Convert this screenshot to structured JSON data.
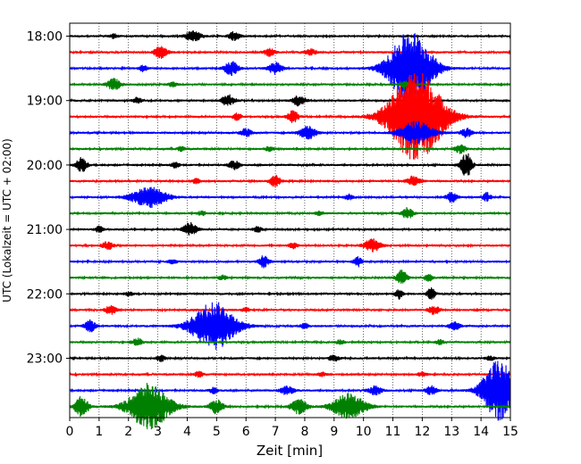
{
  "chart_data": {
    "type": "line",
    "title": "",
    "xlabel": "Zeit  [min]",
    "ylabel": "UTC (Lokalzeit = UTC + 02:00)",
    "xlim": [
      0,
      15
    ],
    "x_ticks": [
      "0",
      "1",
      "2",
      "3",
      "4",
      "5",
      "6",
      "7",
      "8",
      "9",
      "10",
      "11",
      "12",
      "13",
      "14",
      "15"
    ],
    "y_tick_labels": [
      "18:00",
      "19:00",
      "20:00",
      "21:00",
      "22:00",
      "23:00"
    ],
    "grid": "vertical dotted",
    "trace_start_times": [
      "18:00",
      "18:15",
      "18:30",
      "18:45",
      "19:00",
      "19:15",
      "19:30",
      "19:45",
      "20:00",
      "20:15",
      "20:30",
      "20:45",
      "21:00",
      "21:15",
      "21:30",
      "21:45",
      "22:00",
      "22:15",
      "22:30",
      "22:45",
      "23:00",
      "23:15",
      "23:30",
      "23:45"
    ],
    "trace_colors": [
      "#000000",
      "#ff0000",
      "#0000ff",
      "#008000"
    ],
    "trace_bursts": [
      [
        [
          4.2,
          0.6,
          0.35
        ],
        [
          5.6,
          0.4,
          0.3
        ],
        [
          1.5,
          0.3,
          0.15
        ]
      ],
      [
        [
          3.1,
          0.5,
          0.4
        ],
        [
          6.8,
          0.4,
          0.25
        ],
        [
          8.2,
          0.4,
          0.2
        ]
      ],
      [
        [
          11.6,
          1.6,
          2.6
        ],
        [
          5.5,
          0.5,
          0.5
        ],
        [
          7.0,
          0.5,
          0.4
        ],
        [
          2.5,
          0.3,
          0.2
        ]
      ],
      [
        [
          1.5,
          0.5,
          0.4
        ],
        [
          11.4,
          0.3,
          0.25
        ],
        [
          3.5,
          0.3,
          0.15
        ]
      ],
      [
        [
          5.4,
          0.5,
          0.4
        ],
        [
          7.8,
          0.5,
          0.35
        ],
        [
          2.3,
          0.3,
          0.2
        ]
      ],
      [
        [
          11.8,
          2.0,
          3.2
        ],
        [
          7.6,
          0.4,
          0.4
        ],
        [
          5.7,
          0.3,
          0.25
        ]
      ],
      [
        [
          8.1,
          0.6,
          0.45
        ],
        [
          6.0,
          0.4,
          0.3
        ],
        [
          13.5,
          0.4,
          0.3
        ],
        [
          11.8,
          1.2,
          0.8
        ]
      ],
      [
        [
          13.3,
          0.4,
          0.3
        ],
        [
          6.8,
          0.3,
          0.2
        ],
        [
          3.8,
          0.3,
          0.15
        ]
      ],
      [
        [
          0.4,
          0.4,
          0.5
        ],
        [
          13.5,
          0.4,
          0.9
        ],
        [
          5.6,
          0.4,
          0.3
        ],
        [
          3.6,
          0.3,
          0.2
        ]
      ],
      [
        [
          7.0,
          0.4,
          0.4
        ],
        [
          11.7,
          0.5,
          0.35
        ],
        [
          4.3,
          0.3,
          0.15
        ]
      ],
      [
        [
          2.7,
          1.3,
          0.7
        ],
        [
          13.0,
          0.4,
          0.35
        ],
        [
          14.2,
          0.3,
          0.3
        ],
        [
          9.5,
          0.3,
          0.2
        ]
      ],
      [
        [
          11.5,
          0.4,
          0.4
        ],
        [
          4.5,
          0.3,
          0.15
        ],
        [
          8.5,
          0.3,
          0.15
        ]
      ],
      [
        [
          4.1,
          0.5,
          0.45
        ],
        [
          6.4,
          0.3,
          0.2
        ],
        [
          1.0,
          0.3,
          0.2
        ]
      ],
      [
        [
          10.3,
          0.6,
          0.45
        ],
        [
          1.3,
          0.4,
          0.3
        ],
        [
          7.6,
          0.3,
          0.2
        ]
      ],
      [
        [
          6.6,
          0.4,
          0.4
        ],
        [
          9.8,
          0.3,
          0.35
        ],
        [
          3.5,
          0.3,
          0.15
        ]
      ],
      [
        [
          11.3,
          0.4,
          0.5
        ],
        [
          12.2,
          0.3,
          0.25
        ],
        [
          5.2,
          0.3,
          0.15
        ]
      ],
      [
        [
          11.2,
          0.3,
          0.35
        ],
        [
          12.3,
          0.3,
          0.4
        ],
        [
          2.0,
          0.3,
          0.15
        ]
      ],
      [
        [
          1.4,
          0.4,
          0.3
        ],
        [
          12.4,
          0.4,
          0.3
        ],
        [
          6.0,
          0.3,
          0.15
        ]
      ],
      [
        [
          4.9,
          1.6,
          1.7
        ],
        [
          0.7,
          0.4,
          0.4
        ],
        [
          13.1,
          0.4,
          0.3
        ],
        [
          8.0,
          0.3,
          0.2
        ]
      ],
      [
        [
          2.3,
          0.4,
          0.25
        ],
        [
          9.2,
          0.3,
          0.15
        ],
        [
          12.6,
          0.3,
          0.15
        ]
      ],
      [
        [
          3.1,
          0.3,
          0.2
        ],
        [
          9.0,
          0.4,
          0.2
        ],
        [
          14.3,
          0.3,
          0.15
        ]
      ],
      [
        [
          4.4,
          0.3,
          0.2
        ],
        [
          8.6,
          0.3,
          0.15
        ],
        [
          12.0,
          0.3,
          0.15
        ]
      ],
      [
        [
          14.6,
          1.2,
          2.1
        ],
        [
          7.4,
          0.5,
          0.3
        ],
        [
          10.4,
          0.5,
          0.3
        ],
        [
          12.3,
          0.4,
          0.3
        ],
        [
          4.9,
          0.3,
          0.2
        ]
      ],
      [
        [
          2.7,
          1.5,
          1.6
        ],
        [
          9.5,
          1.2,
          0.9
        ],
        [
          0.4,
          0.5,
          0.7
        ],
        [
          5.0,
          0.5,
          0.5
        ],
        [
          7.8,
          0.6,
          0.5
        ]
      ]
    ]
  }
}
